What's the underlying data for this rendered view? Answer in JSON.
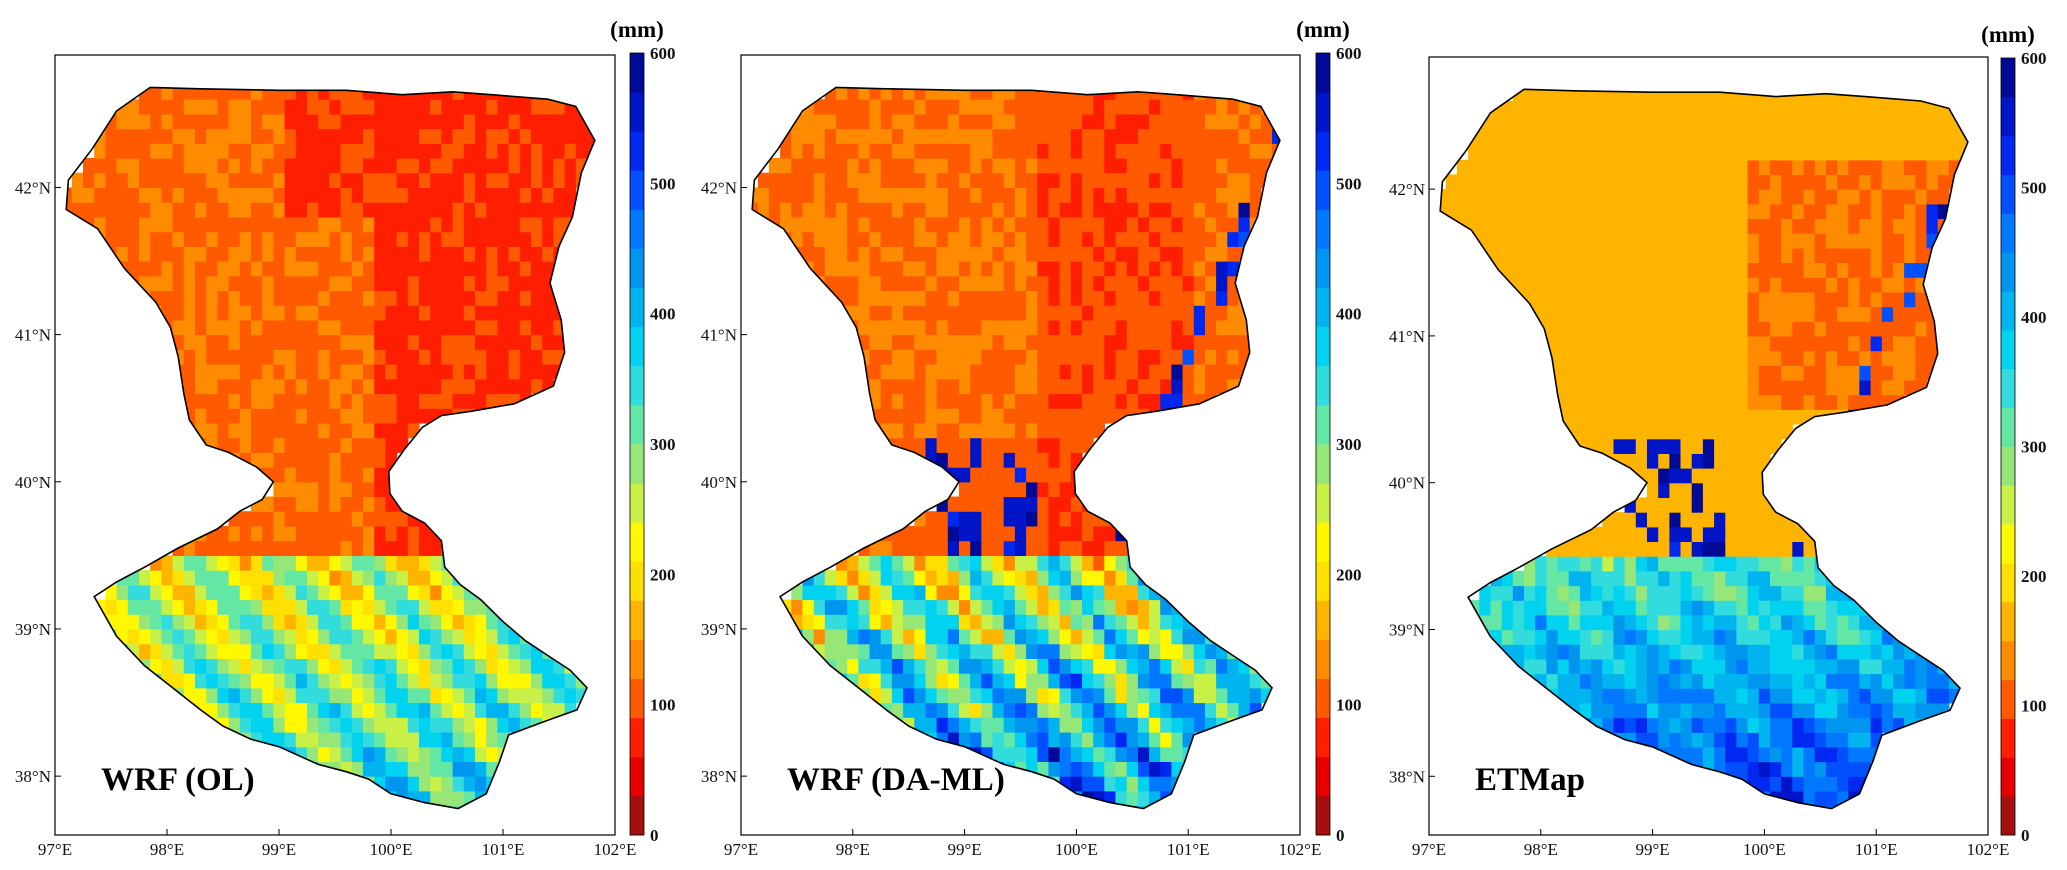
{
  "chart_data": {
    "type": "heatmap",
    "unit": "(mm)",
    "panels": [
      {
        "title": "WRF (OL)",
        "regime": "ol"
      },
      {
        "title": "WRF (DA-ML)",
        "regime": "daml"
      },
      {
        "title": "ETMap",
        "regime": "etmap"
      }
    ],
    "x_ticks": [
      "97°E",
      "98°E",
      "99°E",
      "100°E",
      "101°E",
      "102°E"
    ],
    "y_ticks": [
      "38°N",
      "39°N",
      "40°N",
      "41°N",
      "42°N"
    ],
    "x_range": [
      97,
      102
    ],
    "y_range": [
      37.6,
      42.9
    ],
    "colorbar": {
      "range": [
        0,
        600
      ],
      "ticks": [
        "0",
        "100",
        "200",
        "300",
        "400",
        "500",
        "600"
      ],
      "colors": [
        "#a50f0f",
        "#e60000",
        "#ff1e00",
        "#ff5a00",
        "#ff8c00",
        "#ffb400",
        "#ffe000",
        "#fff800",
        "#c8f046",
        "#96e678",
        "#64e6a5",
        "#32dcdc",
        "#00d2f0",
        "#00b4f0",
        "#0096f0",
        "#0078ff",
        "#0050ff",
        "#0028f0",
        "#0014c8",
        "#000a96"
      ]
    }
  }
}
